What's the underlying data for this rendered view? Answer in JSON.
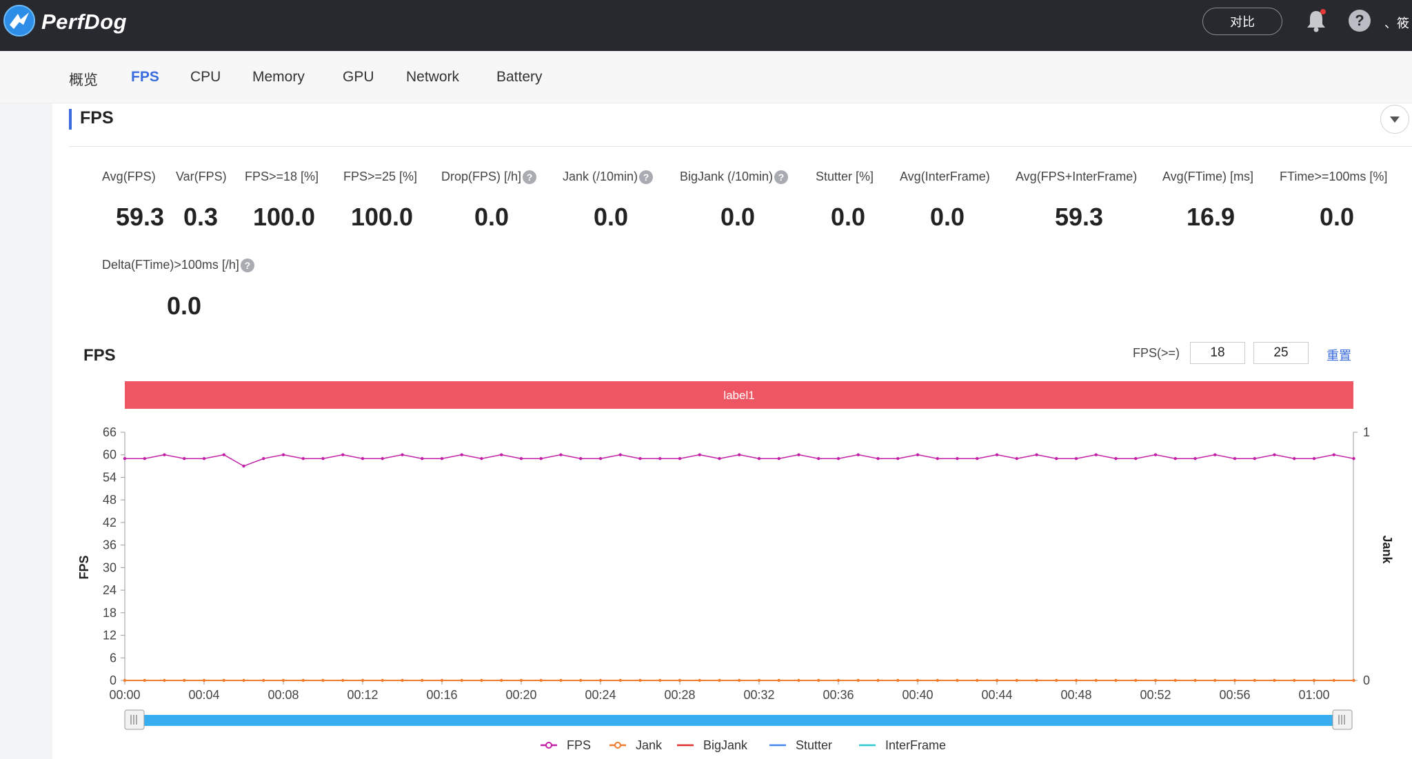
{
  "app": {
    "name": "PerfDog",
    "compare_label": "对比",
    "user_text": "、筱"
  },
  "tabs": [
    {
      "label": "概览",
      "active": false
    },
    {
      "label": "FPS",
      "active": true
    },
    {
      "label": "CPU",
      "active": false
    },
    {
      "label": "Memory",
      "active": false
    },
    {
      "label": "GPU",
      "active": false
    },
    {
      "label": "Network",
      "active": false
    },
    {
      "label": "Battery",
      "active": false
    }
  ],
  "section": {
    "title": "FPS"
  },
  "stats": [
    {
      "label": "Avg(FPS)",
      "value": "59.3",
      "help": false
    },
    {
      "label": "Var(FPS)",
      "value": "0.3",
      "help": false
    },
    {
      "label": "FPS>=18 [%]",
      "value": "100.0",
      "help": false
    },
    {
      "label": "FPS>=25 [%]",
      "value": "100.0",
      "help": false
    },
    {
      "label": "Drop(FPS) [/h]",
      "value": "0.0",
      "help": true
    },
    {
      "label": "Jank (/10min)",
      "value": "0.0",
      "help": true
    },
    {
      "label": "BigJank (/10min)",
      "value": "0.0",
      "help": true
    },
    {
      "label": "Stutter [%]",
      "value": "0.0",
      "help": false
    },
    {
      "label": "Avg(InterFrame)",
      "value": "0.0",
      "help": false
    },
    {
      "label": "Avg(FPS+InterFrame)",
      "value": "59.3",
      "help": false
    },
    {
      "label": "Avg(FTime) [ms]",
      "value": "16.9",
      "help": false
    },
    {
      "label": "FTime>=100ms [%]",
      "value": "0.0",
      "help": false
    },
    {
      "label": "Delta(FTime)>100ms [/h]",
      "value": "0.0",
      "help": true
    }
  ],
  "chart_controls": {
    "title": "FPS",
    "threshold_label": "FPS(>=)",
    "threshold_low": "18",
    "threshold_high": "25",
    "reset_label": "重置"
  },
  "colors": {
    "fps": "#c21fa6",
    "jank": "#f07a2b",
    "bigjank": "#e02d2d",
    "stutter": "#3f86f0",
    "interframe": "#2ac7cf",
    "label_band": "#ef5663",
    "accent": "#3a6ce0",
    "slider": "#37aef0"
  },
  "chart_data": {
    "type": "line",
    "label_band": "label1",
    "xlabel": "",
    "ylabel": "FPS",
    "y2label": "Jank",
    "ylim": [
      0,
      66
    ],
    "yticks": [
      0,
      6,
      12,
      18,
      24,
      30,
      36,
      42,
      48,
      54,
      60,
      66
    ],
    "y2lim": [
      0,
      1
    ],
    "y2ticks": [
      0,
      1
    ],
    "xlim_seconds": [
      0,
      62
    ],
    "xticks": [
      "00:00",
      "00:04",
      "00:08",
      "00:12",
      "00:16",
      "00:20",
      "00:24",
      "00:28",
      "00:32",
      "00:36",
      "00:40",
      "00:44",
      "00:48",
      "00:52",
      "00:56",
      "01:00"
    ],
    "x": [
      0,
      1,
      2,
      3,
      4,
      5,
      6,
      7,
      8,
      9,
      10,
      11,
      12,
      13,
      14,
      15,
      16,
      17,
      18,
      19,
      20,
      21,
      22,
      23,
      24,
      25,
      26,
      27,
      28,
      29,
      30,
      31,
      32,
      33,
      34,
      35,
      36,
      37,
      38,
      39,
      40,
      41,
      42,
      43,
      44,
      45,
      46,
      47,
      48,
      49,
      50,
      51,
      52,
      53,
      54,
      55,
      56,
      57,
      58,
      59,
      60,
      61,
      62
    ],
    "series": [
      {
        "name": "FPS",
        "axis": "left",
        "values": [
          59,
          59,
          60,
          59,
          59,
          60,
          57,
          59,
          60,
          59,
          59,
          60,
          59,
          59,
          60,
          59,
          59,
          60,
          59,
          60,
          59,
          59,
          60,
          59,
          59,
          60,
          59,
          59,
          59,
          60,
          59,
          60,
          59,
          59,
          60,
          59,
          59,
          60,
          59,
          59,
          60,
          59,
          59,
          59,
          60,
          59,
          60,
          59,
          59,
          60,
          59,
          59,
          60,
          59,
          59,
          60,
          59,
          59,
          60,
          59,
          59,
          60,
          59
        ]
      },
      {
        "name": "Jank",
        "axis": "right",
        "values": [
          0,
          0,
          0,
          0,
          0,
          0,
          0,
          0,
          0,
          0,
          0,
          0,
          0,
          0,
          0,
          0,
          0,
          0,
          0,
          0,
          0,
          0,
          0,
          0,
          0,
          0,
          0,
          0,
          0,
          0,
          0,
          0,
          0,
          0,
          0,
          0,
          0,
          0,
          0,
          0,
          0,
          0,
          0,
          0,
          0,
          0,
          0,
          0,
          0,
          0,
          0,
          0,
          0,
          0,
          0,
          0,
          0,
          0,
          0,
          0,
          0,
          0,
          0
        ]
      },
      {
        "name": "BigJank",
        "axis": "right",
        "values": [
          0,
          0,
          0,
          0,
          0,
          0,
          0,
          0,
          0,
          0,
          0,
          0,
          0,
          0,
          0,
          0,
          0,
          0,
          0,
          0,
          0,
          0,
          0,
          0,
          0,
          0,
          0,
          0,
          0,
          0,
          0,
          0,
          0,
          0,
          0,
          0,
          0,
          0,
          0,
          0,
          0,
          0,
          0,
          0,
          0,
          0,
          0,
          0,
          0,
          0,
          0,
          0,
          0,
          0,
          0,
          0,
          0,
          0,
          0,
          0,
          0,
          0,
          0
        ]
      },
      {
        "name": "Stutter",
        "axis": "right",
        "values": [
          0,
          0,
          0,
          0,
          0,
          0,
          0,
          0,
          0,
          0,
          0,
          0,
          0,
          0,
          0,
          0,
          0,
          0,
          0,
          0,
          0,
          0,
          0,
          0,
          0,
          0,
          0,
          0,
          0,
          0,
          0,
          0,
          0,
          0,
          0,
          0,
          0,
          0,
          0,
          0,
          0,
          0,
          0,
          0,
          0,
          0,
          0,
          0,
          0,
          0,
          0,
          0,
          0,
          0,
          0,
          0,
          0,
          0,
          0,
          0,
          0,
          0,
          0
        ]
      },
      {
        "name": "InterFrame",
        "axis": "right",
        "values": [
          0,
          0,
          0,
          0,
          0,
          0,
          0,
          0,
          0,
          0,
          0,
          0,
          0,
          0,
          0,
          0,
          0,
          0,
          0,
          0,
          0,
          0,
          0,
          0,
          0,
          0,
          0,
          0,
          0,
          0,
          0,
          0,
          0,
          0,
          0,
          0,
          0,
          0,
          0,
          0,
          0,
          0,
          0,
          0,
          0,
          0,
          0,
          0,
          0,
          0,
          0,
          0,
          0,
          0,
          0,
          0,
          0,
          0,
          0,
          0,
          0,
          0,
          0
        ]
      }
    ],
    "legend": [
      "FPS",
      "Jank",
      "BigJank",
      "Stutter",
      "InterFrame"
    ],
    "legend_position": "bottom",
    "grid": false
  }
}
